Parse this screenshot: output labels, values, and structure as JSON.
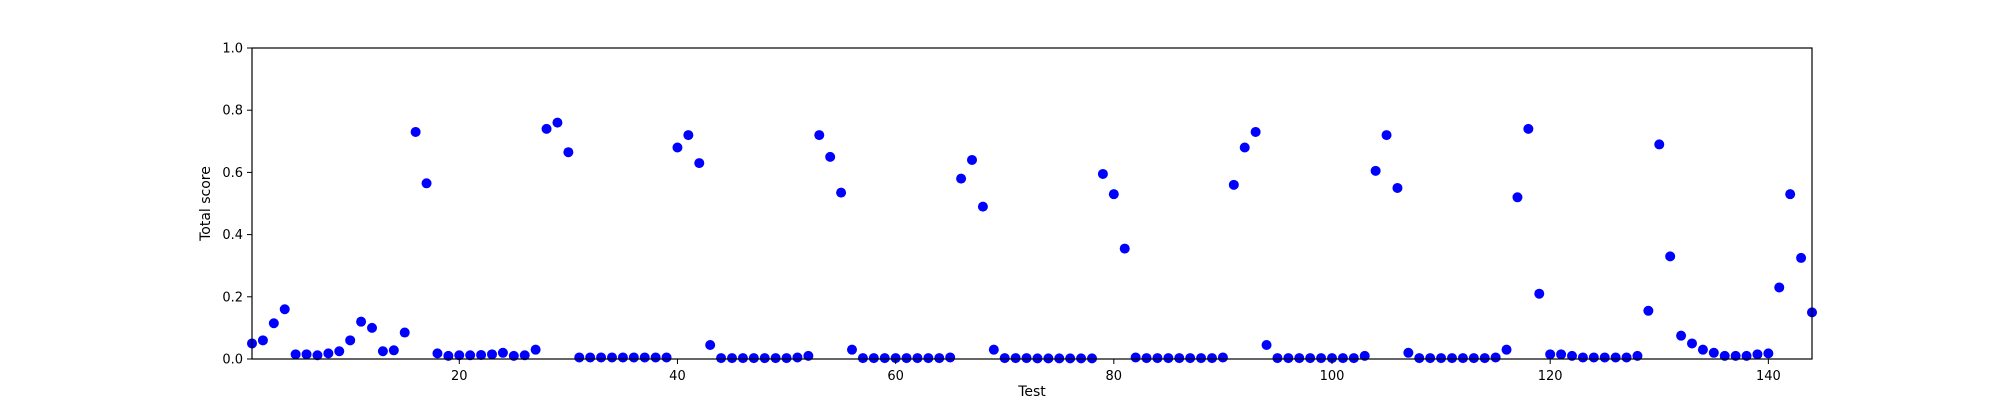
{
  "chart_data": {
    "type": "scatter",
    "title": "",
    "xlabel": "Test",
    "ylabel": "Total score",
    "xlim": [
      1,
      144
    ],
    "ylim": [
      0.0,
      1.0
    ],
    "x_ticks": [
      20,
      40,
      60,
      80,
      100,
      120,
      140
    ],
    "y_ticks": [
      0.0,
      0.2,
      0.4,
      0.6,
      0.8,
      1.0
    ],
    "grid": false,
    "legend": "none",
    "marker_color": "#0000ff",
    "series": [
      {
        "x": [
          1,
          2,
          3,
          4,
          5,
          6,
          7,
          8,
          9,
          10,
          11,
          12,
          13,
          14,
          15,
          16,
          17,
          18,
          19,
          20,
          21,
          22,
          23,
          24,
          25,
          26,
          27,
          28,
          29,
          30,
          31,
          32,
          33,
          34,
          35,
          36,
          37,
          38,
          39,
          40,
          41,
          42,
          43,
          44,
          45,
          46,
          47,
          48,
          49,
          50,
          51,
          52,
          53,
          54,
          55,
          56,
          57,
          58,
          59,
          60,
          61,
          62,
          63,
          64,
          65,
          66,
          67,
          68,
          69,
          70,
          71,
          72,
          73,
          74,
          75,
          76,
          77,
          78,
          79,
          80,
          81,
          82,
          83,
          84,
          85,
          86,
          87,
          88,
          89,
          90,
          91,
          92,
          93,
          94,
          95,
          96,
          97,
          98,
          99,
          100,
          101,
          102,
          103,
          104,
          105,
          106,
          107,
          108,
          109,
          110,
          111,
          112,
          113,
          114,
          115,
          116,
          117,
          118,
          119,
          120,
          121,
          122,
          123,
          124,
          125,
          126,
          127,
          128,
          129,
          130,
          131,
          132,
          133,
          134,
          135,
          136,
          137,
          138,
          139,
          140,
          141,
          142,
          143,
          144
        ],
        "y": [
          0.05,
          0.06,
          0.115,
          0.16,
          0.015,
          0.015,
          0.012,
          0.018,
          0.025,
          0.06,
          0.12,
          0.1,
          0.025,
          0.028,
          0.085,
          0.73,
          0.565,
          0.018,
          0.01,
          0.012,
          0.012,
          0.013,
          0.015,
          0.02,
          0.01,
          0.012,
          0.03,
          0.74,
          0.76,
          0.665,
          0.005,
          0.005,
          0.005,
          0.005,
          0.005,
          0.005,
          0.005,
          0.005,
          0.005,
          0.68,
          0.72,
          0.63,
          0.045,
          0.003,
          0.003,
          0.003,
          0.003,
          0.003,
          0.003,
          0.003,
          0.005,
          0.01,
          0.72,
          0.65,
          0.535,
          0.03,
          0.003,
          0.003,
          0.003,
          0.003,
          0.003,
          0.003,
          0.003,
          0.003,
          0.005,
          0.58,
          0.64,
          0.49,
          0.03,
          0.003,
          0.003,
          0.003,
          0.002,
          0.002,
          0.002,
          0.002,
          0.002,
          0.002,
          0.595,
          0.53,
          0.355,
          0.005,
          0.003,
          0.003,
          0.003,
          0.003,
          0.003,
          0.003,
          0.003,
          0.005,
          0.56,
          0.68,
          0.73,
          0.045,
          0.003,
          0.003,
          0.003,
          0.003,
          0.003,
          0.003,
          0.003,
          0.003,
          0.01,
          0.605,
          0.72,
          0.55,
          0.02,
          0.003,
          0.003,
          0.003,
          0.003,
          0.003,
          0.003,
          0.003,
          0.005,
          0.03,
          0.52,
          0.74,
          0.21,
          0.015,
          0.015,
          0.01,
          0.005,
          0.005,
          0.005,
          0.005,
          0.005,
          0.01,
          0.155,
          0.69,
          0.33,
          0.075,
          0.05,
          0.03,
          0.02,
          0.01,
          0.01,
          0.01,
          0.015,
          0.018,
          0.23,
          0.53,
          0.325,
          0.15
        ]
      }
    ]
  }
}
